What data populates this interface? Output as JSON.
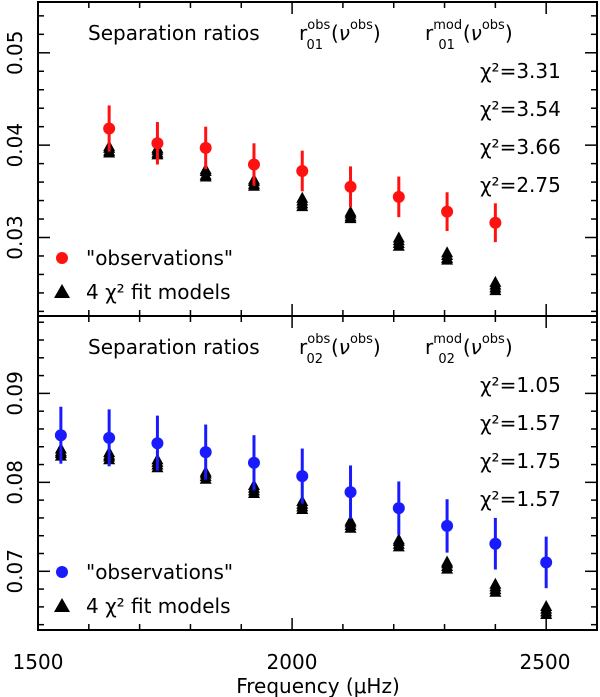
{
  "chart_data": [
    {
      "type": "scatter",
      "title_prefix": "Separation ratios",
      "obs_label": {
        "base": "r",
        "sub": "01",
        "sup": "obs",
        "arg": "ν",
        "arg_sup": "obs"
      },
      "mod_label": {
        "base": "r",
        "sub": "01",
        "sup": "mod",
        "arg": "ν",
        "arg_sup": "obs"
      },
      "chi2_values": [
        "χ²=3.31",
        "χ²=3.54",
        "χ²=3.66",
        "χ²=2.75"
      ],
      "xlim": [
        1500,
        2600
      ],
      "ylim": [
        0.0215,
        0.0555
      ],
      "yticks": [
        0.03,
        0.04,
        0.05
      ],
      "ytick_labels": [
        "0.03",
        "0.04",
        "0.05"
      ],
      "color": "#ff1111",
      "observations": {
        "name": "\"observations\"",
        "x": [
          1640,
          1735,
          1830,
          1925,
          2020,
          2115,
          2210,
          2305,
          2400
        ],
        "y": [
          0.0418,
          0.0402,
          0.0397,
          0.0379,
          0.0372,
          0.0355,
          0.0344,
          0.0328,
          0.0316
        ],
        "err": [
          0.0025,
          0.0023,
          0.0023,
          0.0023,
          0.0022,
          0.0022,
          0.0022,
          0.0021,
          0.0021
        ]
      },
      "models": {
        "name": "4 χ² fit models",
        "x": [
          1640,
          1735,
          1830,
          1925,
          2020,
          2115,
          2210,
          2305,
          2400
        ],
        "y": [
          [
            0.0394,
            0.0399,
            0.0397,
            0.0392
          ],
          [
            0.0392,
            0.0397,
            0.0395,
            0.039
          ],
          [
            0.0368,
            0.0374,
            0.0372,
            0.0366
          ],
          [
            0.0358,
            0.0363,
            0.0361,
            0.0356
          ],
          [
            0.0337,
            0.0343,
            0.034,
            0.0334
          ],
          [
            0.0323,
            0.0328,
            0.0326,
            0.0321
          ],
          [
            0.0294,
            0.03,
            0.0297,
            0.0291
          ],
          [
            0.0278,
            0.0284,
            0.0281,
            0.0276
          ],
          [
            0.0246,
            0.0252,
            0.0249,
            0.0243
          ]
        ]
      }
    },
    {
      "type": "scatter",
      "title_prefix": "Separation ratios",
      "obs_label": {
        "base": "r",
        "sub": "02",
        "sup": "obs",
        "arg": "ν",
        "arg_sup": "obs"
      },
      "mod_label": {
        "base": "r",
        "sub": "02",
        "sup": "mod",
        "arg": "ν",
        "arg_sup": "obs"
      },
      "chi2_values": [
        "χ²=1.05",
        "χ²=1.57",
        "χ²=1.75",
        "χ²=1.57"
      ],
      "xlim": [
        1500,
        2600
      ],
      "ylim": [
        0.0634,
        0.0987
      ],
      "yticks": [
        0.07,
        0.08,
        0.09
      ],
      "ytick_labels": [
        "0.07",
        "0.08",
        "0.09"
      ],
      "color": "#1a1aff",
      "observations": {
        "name": "\"observations\"",
        "x": [
          1545,
          1640,
          1735,
          1830,
          1925,
          2020,
          2115,
          2210,
          2305,
          2400,
          2500
        ],
        "y": [
          0.0853,
          0.085,
          0.0844,
          0.0834,
          0.0822,
          0.0807,
          0.0789,
          0.0771,
          0.0751,
          0.0731,
          0.071
        ],
        "err": [
          0.0032,
          0.0032,
          0.0031,
          0.0031,
          0.0031,
          0.0031,
          0.003,
          0.003,
          0.003,
          0.0029,
          0.0029
        ]
      },
      "models": {
        "name": "4 χ² fit models",
        "x": [
          1545,
          1640,
          1735,
          1830,
          1925,
          2020,
          2115,
          2210,
          2305,
          2400,
          2500
        ],
        "y": [
          [
            0.0833,
            0.0838,
            0.0835,
            0.083
          ],
          [
            0.0829,
            0.0834,
            0.0831,
            0.0826
          ],
          [
            0.082,
            0.0826,
            0.0823,
            0.0817
          ],
          [
            0.0807,
            0.0812,
            0.081,
            0.0804
          ],
          [
            0.0791,
            0.0797,
            0.0794,
            0.0788
          ],
          [
            0.0773,
            0.0779,
            0.0776,
            0.077
          ],
          [
            0.0752,
            0.0757,
            0.0755,
            0.0749
          ],
          [
            0.0731,
            0.0736,
            0.0734,
            0.0728
          ],
          [
            0.0706,
            0.0711,
            0.0709,
            0.0703
          ],
          [
            0.068,
            0.0686,
            0.0683,
            0.0677
          ],
          [
            0.0655,
            0.0661,
            0.0658,
            0.0652
          ]
        ]
      }
    }
  ],
  "xaxis": {
    "ticks": [
      1500,
      2000,
      2500
    ],
    "tick_labels": [
      "1500",
      "2000",
      "2500"
    ],
    "label": "Frequency (μHz)"
  }
}
